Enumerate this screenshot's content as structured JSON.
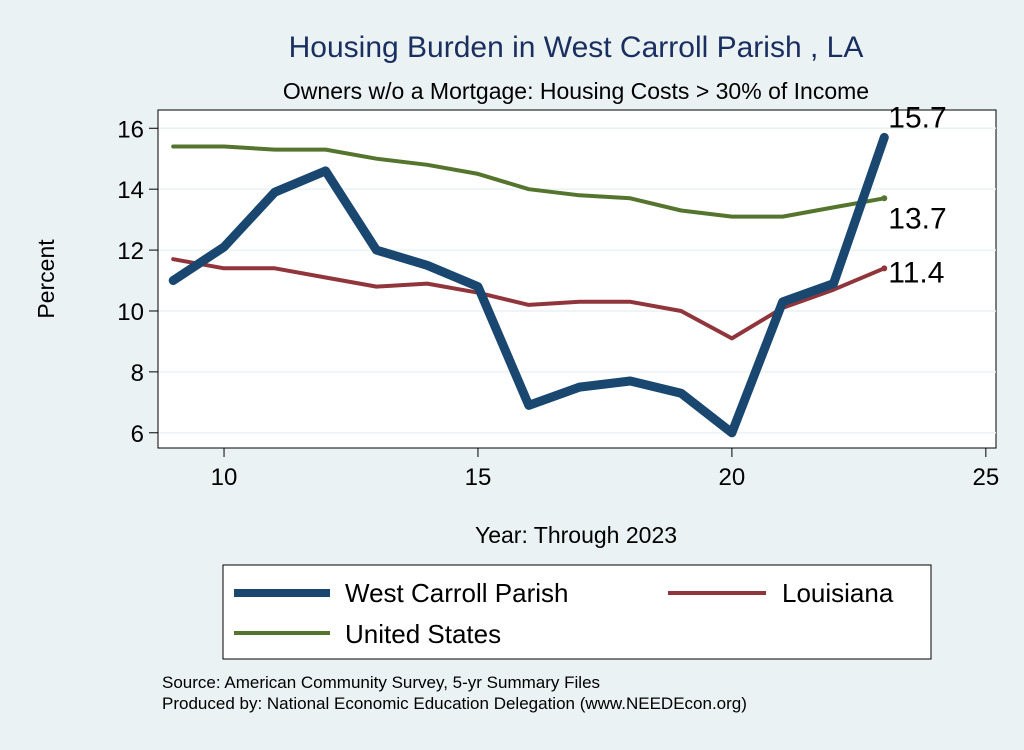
{
  "chart_data": {
    "type": "line",
    "title": "Housing Burden in West Carroll Parish , LA",
    "subtitle": "Owners w/o a Mortgage: Housing Costs > 30% of Income",
    "xlabel": "Year: Through 2023",
    "ylabel": "Percent",
    "xlim": [
      8.7,
      25.2
    ],
    "ylim": [
      5.5,
      16.6
    ],
    "x_ticks": [
      10,
      15,
      20,
      25
    ],
    "y_ticks": [
      6,
      8,
      10,
      12,
      14,
      16
    ],
    "grid": true,
    "legend_position": "bottom",
    "x": [
      9,
      10,
      11,
      12,
      13,
      14,
      15,
      16,
      17,
      18,
      19,
      20,
      21,
      22,
      23
    ],
    "series": [
      {
        "name": "West Carroll Parish",
        "color": "#1a476f",
        "values": [
          11.0,
          12.1,
          13.9,
          14.6,
          12.0,
          11.5,
          10.8,
          6.9,
          7.5,
          7.7,
          7.3,
          6.0,
          10.3,
          10.9,
          15.7
        ],
        "end_label": "15.7"
      },
      {
        "name": "Louisiana",
        "color": "#90353b",
        "values": [
          11.7,
          11.4,
          11.4,
          11.1,
          10.8,
          10.9,
          10.6,
          10.2,
          10.3,
          10.3,
          10.0,
          9.1,
          10.1,
          10.7,
          11.4
        ],
        "end_label": "11.4"
      },
      {
        "name": "United States",
        "color": "#55752f",
        "values": [
          15.4,
          15.4,
          15.3,
          15.3,
          15.0,
          14.8,
          14.5,
          14.0,
          13.8,
          13.7,
          13.3,
          13.1,
          13.1,
          13.4,
          13.7
        ],
        "end_label": "13.7"
      }
    ]
  },
  "footer": {
    "source": "Source: American Community Survey, 5-yr Summary Files",
    "produced_by": "Produced by: National Economic Education Delegation (www.NEEDEcon.org)"
  }
}
